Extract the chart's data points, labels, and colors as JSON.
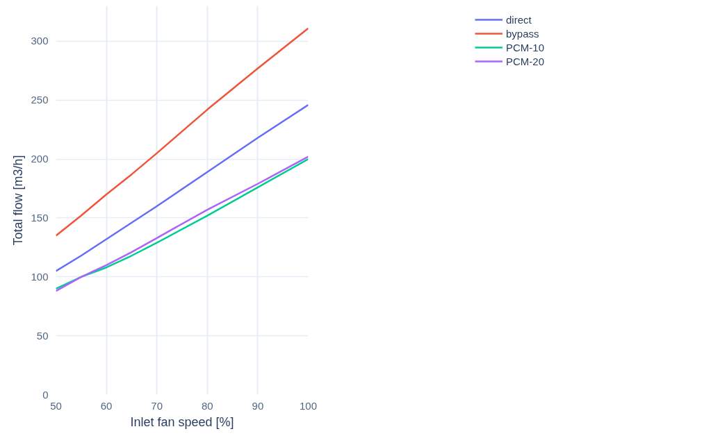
{
  "chart_data": {
    "type": "line",
    "xlabel": "Inlet fan speed [%]",
    "ylabel": "Total flow [m3/h]",
    "x": [
      50,
      55,
      60,
      65,
      70,
      80,
      90,
      100
    ],
    "series": [
      {
        "name": "direct",
        "color": "#636efa",
        "values": [
          105,
          118,
          132,
          146,
          160,
          189,
          218,
          246
        ]
      },
      {
        "name": "bypass",
        "color": "#ef553b",
        "values": [
          135,
          152,
          170,
          187,
          205,
          242,
          277,
          311
        ]
      },
      {
        "name": "PCM-10",
        "color": "#00cc96",
        "values": [
          90,
          100,
          108,
          118,
          129,
          152,
          176,
          200
        ]
      },
      {
        "name": "PCM-20",
        "color": "#ab63fa",
        "values": [
          88,
          100,
          110,
          121,
          133,
          157,
          179,
          202
        ]
      }
    ],
    "xlim": [
      50,
      100
    ],
    "xticks": [
      50,
      60,
      70,
      80,
      90,
      100
    ],
    "ylim": [
      0,
      330
    ],
    "yticks": [
      0,
      50,
      100,
      150,
      200,
      250,
      300
    ],
    "grid": true,
    "legend": "top right",
    "marker": "none",
    "line_style": "solid"
  }
}
